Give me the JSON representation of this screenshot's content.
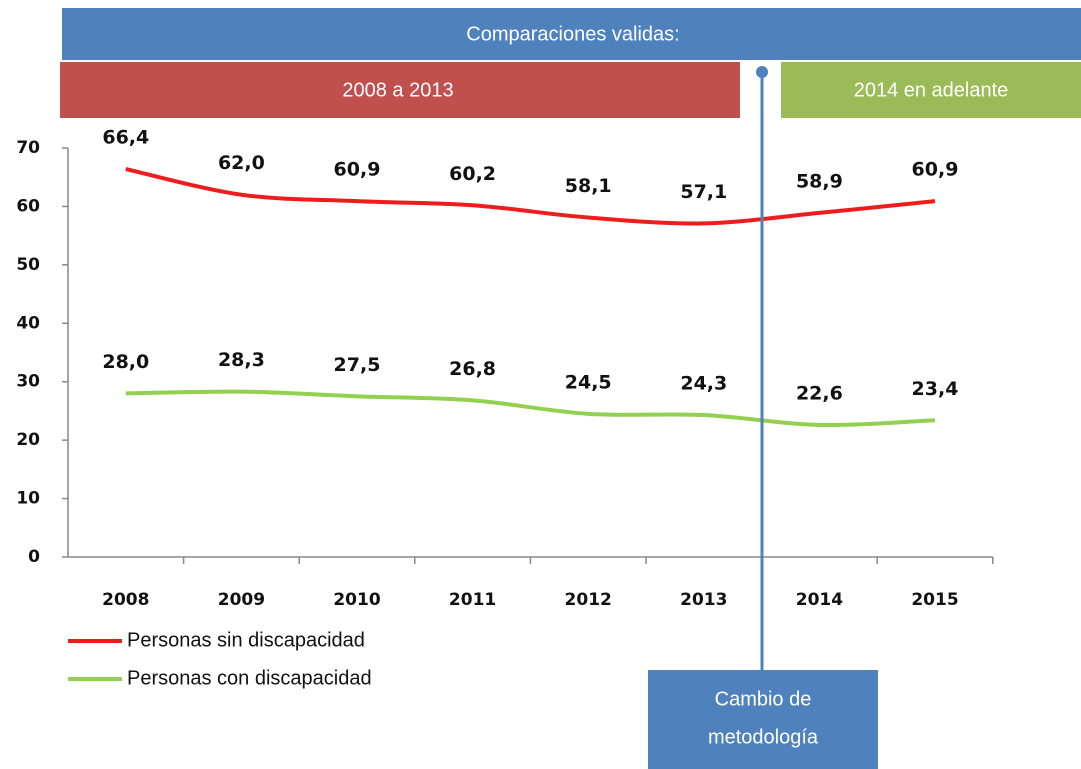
{
  "chart_data": {
    "type": "line",
    "categories": [
      "2008",
      "2009",
      "2010",
      "2011",
      "2012",
      "2013",
      "2014",
      "2015"
    ],
    "series": [
      {
        "name": "Personas sin discapacidad",
        "color": "#ee1c1c",
        "values": [
          66.4,
          62.0,
          60.9,
          60.2,
          58.1,
          57.1,
          58.9,
          60.9
        ],
        "value_labels": [
          "66,4",
          "62,0",
          "60,9",
          "60,2",
          "58,1",
          "57,1",
          "58,9",
          "60,9"
        ]
      },
      {
        "name": "Personas con discapacidad",
        "color": "#92d050",
        "values": [
          28.0,
          28.3,
          27.5,
          26.8,
          24.5,
          24.3,
          22.6,
          23.4
        ],
        "value_labels": [
          "28,0",
          "28,3",
          "27,5",
          "26,8",
          "24,5",
          "24,3",
          "22,6",
          "23,4"
        ]
      }
    ],
    "ylim": [
      0,
      70
    ],
    "yticks": [
      0,
      10,
      20,
      30,
      40,
      50,
      60,
      70
    ],
    "grid": false,
    "annotations": {
      "banner": "Comparaciones validas:",
      "period_1": "2008 a 2013",
      "period_2": "2014 en adelante",
      "method_change": [
        "Cambio de",
        "metodología"
      ]
    }
  }
}
